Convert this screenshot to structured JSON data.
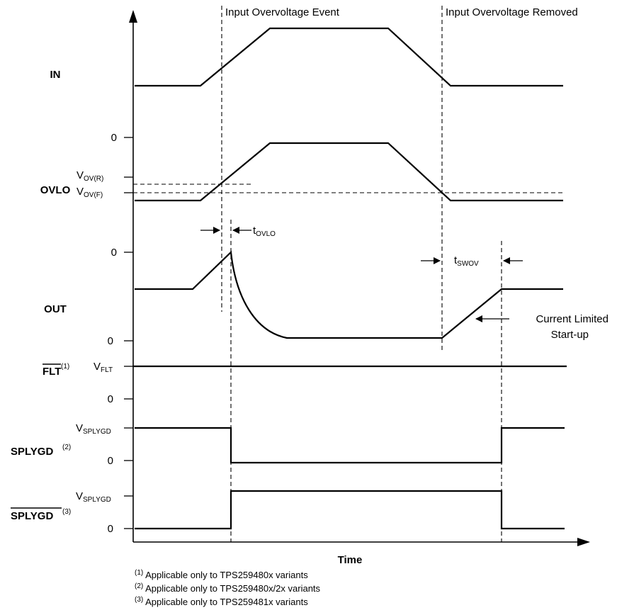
{
  "events": {
    "overvoltage_event": "Input Overvoltage Event",
    "overvoltage_removed": "Input Overvoltage Removed"
  },
  "signals": {
    "in": "IN",
    "ovlo": "OVLO",
    "out": "OUT",
    "flt": "FLT",
    "flt_note": "(1)",
    "splygd": "SPLYGD",
    "splygd_note": "(2)",
    "splygd_n": "SPLYGD",
    "splygd_n_note": "(3)"
  },
  "levels": {
    "zero": "0",
    "vov_r_main": "V",
    "vov_r_sub": "OV(R)",
    "vov_f_main": "V",
    "vov_f_sub": "OV(F)",
    "vflt_main": "V",
    "vflt_sub": "FLT",
    "vsplygd_main": "V",
    "vsplygd_sub": "SPLYGD"
  },
  "timing": {
    "tovlo_main": "t",
    "tovlo_sub": "OVLO",
    "tswov_main": "t",
    "tswov_sub": "SWOV",
    "current_limited_1": "Current Limited",
    "current_limited_2": "Start-up"
  },
  "x_axis_label": "Time",
  "footnotes": [
    {
      "mark": "(1)",
      "text": " Applicable only to TPS259480x variants"
    },
    {
      "mark": "(2)",
      "text": " Applicable only to TPS259480x/2x variants"
    },
    {
      "mark": "(3)",
      "text": " Applicable only to TPS259481x variants"
    }
  ]
}
